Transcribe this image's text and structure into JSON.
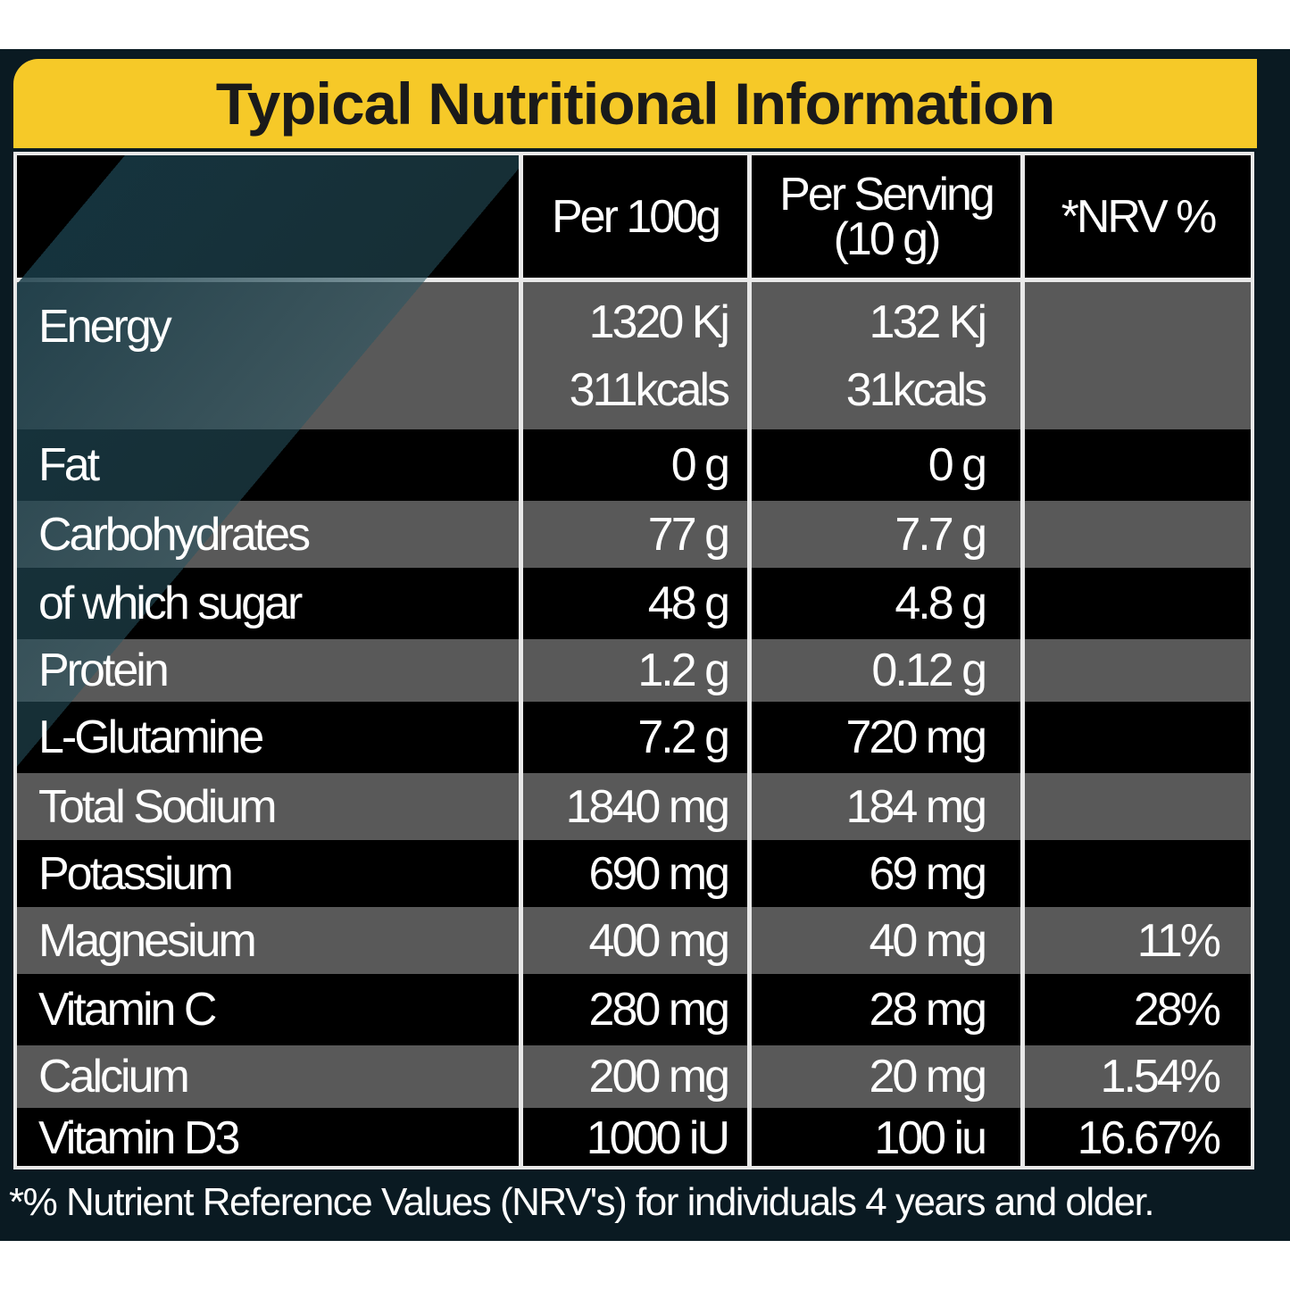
{
  "title": "Typical Nutritional Information",
  "headers": {
    "per100": "Per 100g",
    "serving_line1": "Per Serving",
    "serving_line2": "(10 g)",
    "nrv": "*NRV %"
  },
  "rows": [
    {
      "label": "Energy",
      "per100": "1320 Kj",
      "per100_b": "311kcals",
      "serving": "132 Kj",
      "serving_b": "31kcals",
      "nrv": ""
    },
    {
      "label": "Fat",
      "per100": "0 g",
      "serving": "0 g",
      "nrv": ""
    },
    {
      "label": "Carbohydrates",
      "per100": "77 g",
      "serving": "7.7 g",
      "nrv": ""
    },
    {
      "label": "of which sugar",
      "per100": "48 g",
      "serving": "4.8 g",
      "nrv": ""
    },
    {
      "label": "Protein",
      "per100": "1.2 g",
      "serving": "0.12 g",
      "nrv": ""
    },
    {
      "label": "L-Glutamine",
      "per100": "7.2 g",
      "serving": "720 mg",
      "nrv": ""
    },
    {
      "label": "Total Sodium",
      "per100": "1840 mg",
      "serving": "184 mg",
      "nrv": ""
    },
    {
      "label": "Potassium",
      "per100": "690 mg",
      "serving": "69 mg",
      "nrv": ""
    },
    {
      "label": "Magnesium",
      "per100": "400 mg",
      "serving": "40 mg",
      "nrv": "11%"
    },
    {
      "label": "Vitamin C",
      "per100": "280 mg",
      "serving": "28 mg",
      "nrv": "28%"
    },
    {
      "label": "Calcium",
      "per100": "200 mg",
      "serving": "20 mg",
      "nrv": "1.54%"
    },
    {
      "label": "Vitamin D3",
      "per100": "1000 iU",
      "serving": "100 iu",
      "nrv": "16.67%"
    }
  ],
  "footer": "*% Nutrient Reference Values (NRV's) for individuals 4 years and older.",
  "colors": {
    "header_yellow": "#f6c928",
    "row_gray": "#595959",
    "row_black": "#000000",
    "accent_teal": "#28556a"
  }
}
